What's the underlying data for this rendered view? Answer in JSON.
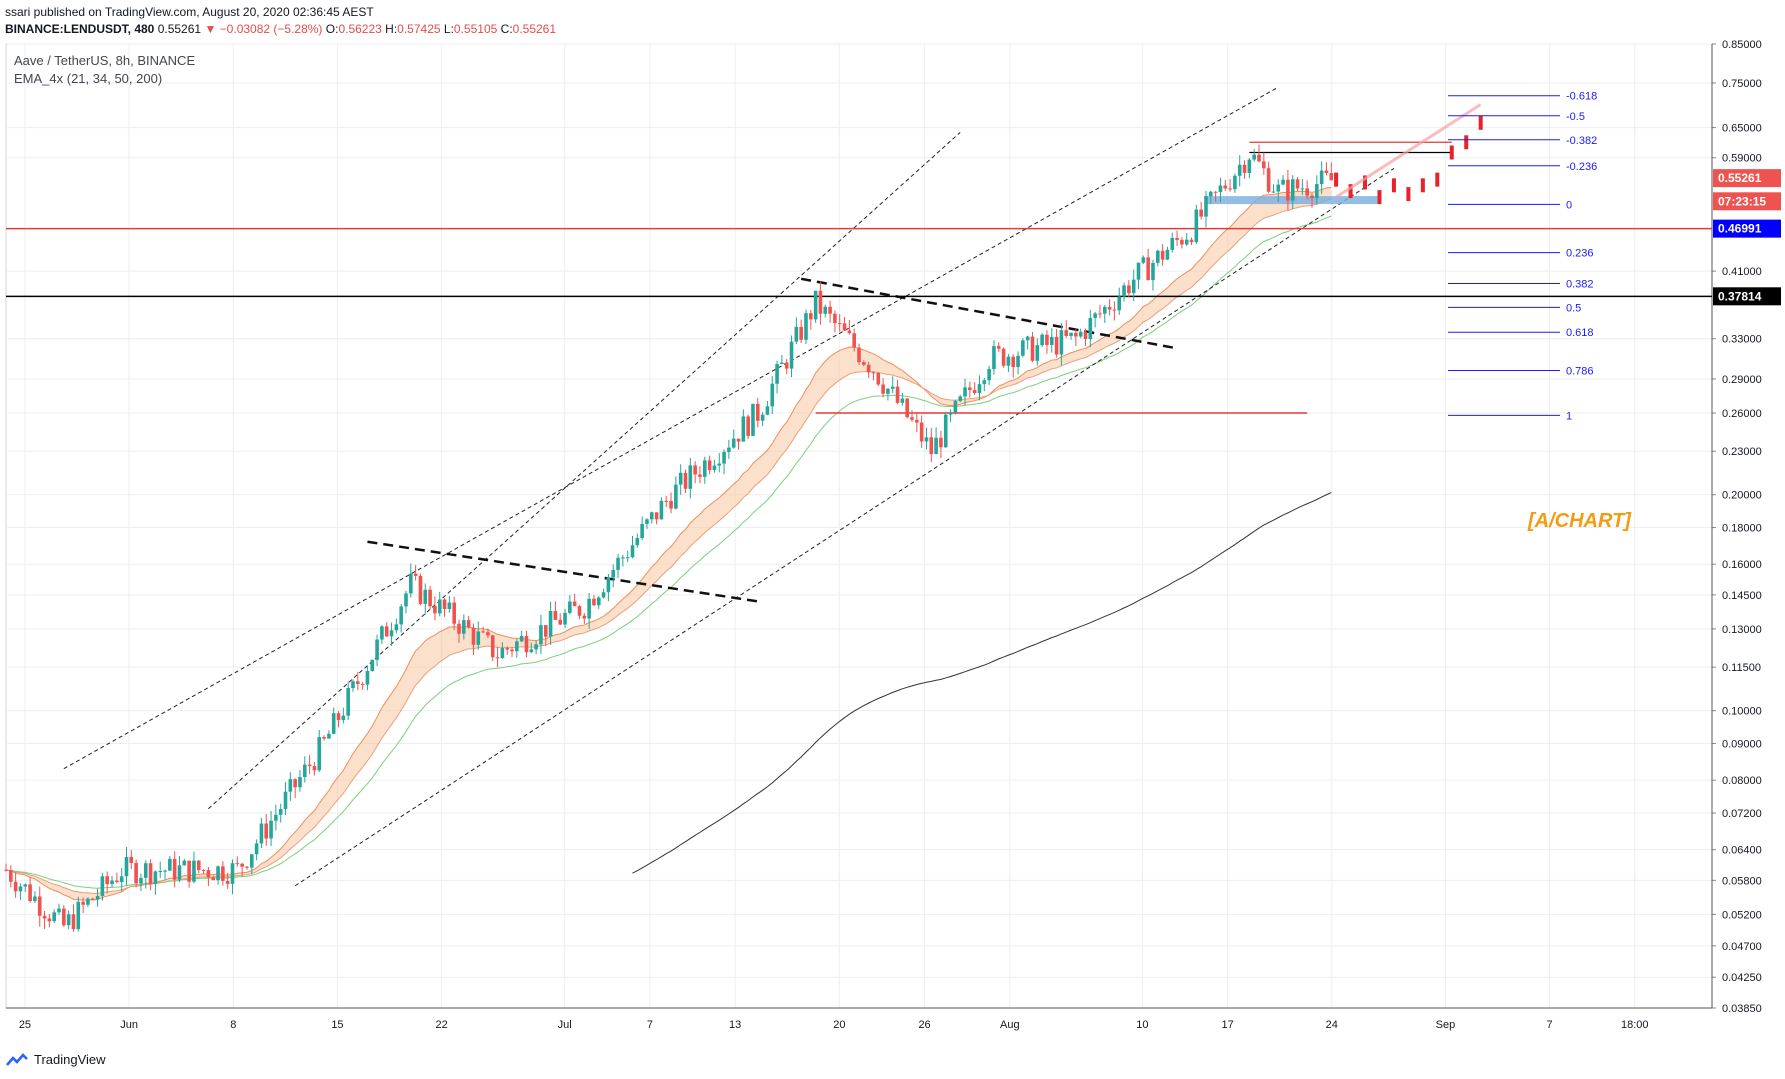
{
  "header": {
    "publisher": "ssari published on TradingView.com, August 20, 2020 02:36:45 AEST",
    "symbol": "BINANCE:LENDUSDT, 480",
    "last": "0.55261",
    "arrow": "▼",
    "change": "−0.03082 (−5.28%)",
    "open_label": "O:",
    "open": "0.56223",
    "high_label": "H:",
    "high": "0.57425",
    "low_label": "L:",
    "low": "0.55105",
    "close_label": "C:",
    "close": "0.55261"
  },
  "legend": {
    "title": "Aave / TetherUS, 8h, BINANCE",
    "indicator": "EMA_4x (21, 34, 50, 200)"
  },
  "watermark": "[A/CHART]",
  "footer": {
    "brand": "TradingView"
  },
  "colors": {
    "up": "#26a69a",
    "down": "#ef5350",
    "red_line": "#e53935",
    "fib": "#1a1aff",
    "price_tag_bg": "#ef5350",
    "blue_tag": "#0000ff",
    "black_tag": "#000000",
    "ema_fill": "#f7c7a3",
    "ema_green": "#7bd07b",
    "ema_dark": "#333333",
    "blue_zone": "#7aaee0",
    "grid": "#eceef3"
  },
  "chart_data": {
    "type": "candlestick",
    "title": "Aave / TetherUS, 8h, BINANCE",
    "y_scale": "log",
    "ylim": [
      0.0385,
      0.85
    ],
    "y_ticks": [
      "0.85000",
      "0.75000",
      "0.65000",
      "0.59000",
      "0.41000",
      "0.33000",
      "0.29000",
      "0.26000",
      "0.23000",
      "0.20000",
      "0.18000",
      "0.16000",
      "0.14500",
      "0.13000",
      "0.11500",
      "0.10000",
      "0.09000",
      "0.08000",
      "0.07200",
      "0.06400",
      "0.05800",
      "0.05200",
      "0.04700",
      "0.04250",
      "0.03850"
    ],
    "x_ticks": [
      "25",
      "Jun",
      "8",
      "15",
      "22",
      "Jul",
      "7",
      "13",
      "20",
      "26",
      "Aug",
      "10",
      "17",
      "24",
      "Sep",
      "7",
      "18:00"
    ],
    "price_tags": [
      {
        "label": "0.55261",
        "type": "last"
      },
      {
        "label": "07:23:15",
        "type": "countdown"
      },
      {
        "label": "0.46991",
        "type": "horizontal-blue"
      },
      {
        "label": "0.37814",
        "type": "horizontal-black"
      }
    ],
    "fib_levels": [
      {
        "ratio": "-0.618",
        "value": 0.72
      },
      {
        "ratio": "-0.5",
        "value": 0.675
      },
      {
        "ratio": "-0.382",
        "value": 0.625
      },
      {
        "ratio": "-0.236",
        "value": 0.575
      },
      {
        "ratio": "0",
        "value": 0.508
      },
      {
        "ratio": "0.236",
        "value": 0.435
      },
      {
        "ratio": "0.382",
        "value": 0.394
      },
      {
        "ratio": "0.5",
        "value": 0.365
      },
      {
        "ratio": "0.618",
        "value": 0.337
      },
      {
        "ratio": "0.786",
        "value": 0.298
      },
      {
        "ratio": "1",
        "value": 0.258
      }
    ],
    "horizontal_lines": [
      {
        "name": "resistance-red",
        "value": 0.46991
      },
      {
        "name": "support-black",
        "value": 0.37814
      },
      {
        "name": "support-red-low",
        "value": 0.26
      }
    ],
    "trend_anchor_points": [
      {
        "day": 0,
        "price": 0.06
      },
      {
        "day": 4,
        "price": 0.05
      },
      {
        "day": 8,
        "price": 0.06
      },
      {
        "day": 16,
        "price": 0.06
      },
      {
        "day": 22,
        "price": 0.09
      },
      {
        "day": 28,
        "price": 0.15
      },
      {
        "day": 34,
        "price": 0.12
      },
      {
        "day": 40,
        "price": 0.14
      },
      {
        "day": 46,
        "price": 0.2
      },
      {
        "day": 52,
        "price": 0.26
      },
      {
        "day": 56,
        "price": 0.37
      },
      {
        "day": 60,
        "price": 0.3
      },
      {
        "day": 64,
        "price": 0.23
      },
      {
        "day": 68,
        "price": 0.31
      },
      {
        "day": 74,
        "price": 0.33
      },
      {
        "day": 78,
        "price": 0.4
      },
      {
        "day": 82,
        "price": 0.47
      },
      {
        "day": 86,
        "price": 0.6
      },
      {
        "day": 88,
        "price": 0.53
      },
      {
        "day": 92,
        "price": 0.55
      }
    ]
  }
}
